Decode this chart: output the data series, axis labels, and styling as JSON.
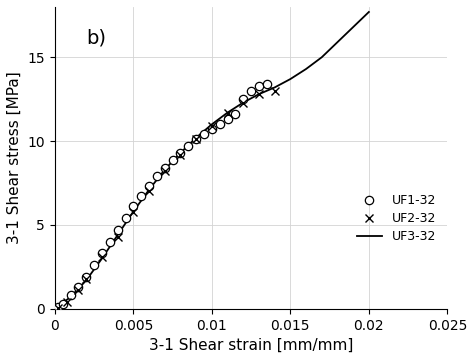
{
  "title_label": "b)",
  "xlabel": "3-1 Shear strain [mm/mm]",
  "ylabel": "3-1 Shear stress [MPa]",
  "xlim": [
    0,
    0.025
  ],
  "ylim": [
    0,
    18
  ],
  "xticks": [
    0,
    0.005,
    0.01,
    0.015,
    0.02,
    0.025
  ],
  "xtick_labels": [
    "0",
    "0.005",
    "0.01",
    "0.015",
    "0.02",
    "0.025"
  ],
  "yticks": [
    0,
    5,
    10,
    15
  ],
  "ytick_labels": [
    "0",
    "5",
    "10",
    "15"
  ],
  "legend_labels": [
    "UF1-32",
    "UF2-32",
    "UF3-32"
  ],
  "background_color": "#ffffff",
  "uf1_x": [
    0.0002,
    0.0005,
    0.001,
    0.0015,
    0.002,
    0.0025,
    0.003,
    0.0035,
    0.004,
    0.0045,
    0.005,
    0.0055,
    0.006,
    0.0065,
    0.007,
    0.0075,
    0.008,
    0.0085,
    0.009,
    0.0095,
    0.01,
    0.0105,
    0.011,
    0.0115,
    0.012,
    0.0125,
    0.013,
    0.0135
  ],
  "uf1_y": [
    0.1,
    0.3,
    0.8,
    1.3,
    1.9,
    2.6,
    3.3,
    4.0,
    4.7,
    5.4,
    6.1,
    6.7,
    7.3,
    7.9,
    8.4,
    8.9,
    9.3,
    9.7,
    10.1,
    10.4,
    10.7,
    11.0,
    11.3,
    11.6,
    12.5,
    13.0,
    13.3,
    13.4
  ],
  "uf2_x": [
    0.0002,
    0.0008,
    0.0015,
    0.002,
    0.003,
    0.004,
    0.005,
    0.006,
    0.007,
    0.008,
    0.009,
    0.01,
    0.011,
    0.012,
    0.013,
    0.014
  ],
  "uf2_y": [
    0.05,
    0.4,
    1.1,
    1.8,
    3.1,
    4.3,
    5.8,
    7.0,
    8.2,
    9.2,
    10.1,
    10.9,
    11.7,
    12.3,
    12.8,
    13.0
  ],
  "uf3_x": [
    0.0,
    0.001,
    0.002,
    0.003,
    0.004,
    0.005,
    0.006,
    0.007,
    0.008,
    0.009,
    0.01,
    0.011,
    0.012,
    0.013,
    0.014,
    0.015,
    0.016,
    0.017,
    0.018,
    0.019,
    0.02
  ],
  "uf3_y": [
    0.0,
    0.7,
    1.7,
    3.0,
    4.4,
    5.8,
    7.1,
    8.3,
    9.3,
    10.2,
    11.0,
    11.7,
    12.3,
    12.8,
    13.2,
    13.7,
    14.3,
    15.0,
    15.9,
    16.8,
    17.7
  ],
  "label_fontsize": 11,
  "tick_fontsize": 10,
  "legend_fontsize": 9,
  "annot_fontsize": 14,
  "marker_size": 6,
  "line_width": 1.3
}
